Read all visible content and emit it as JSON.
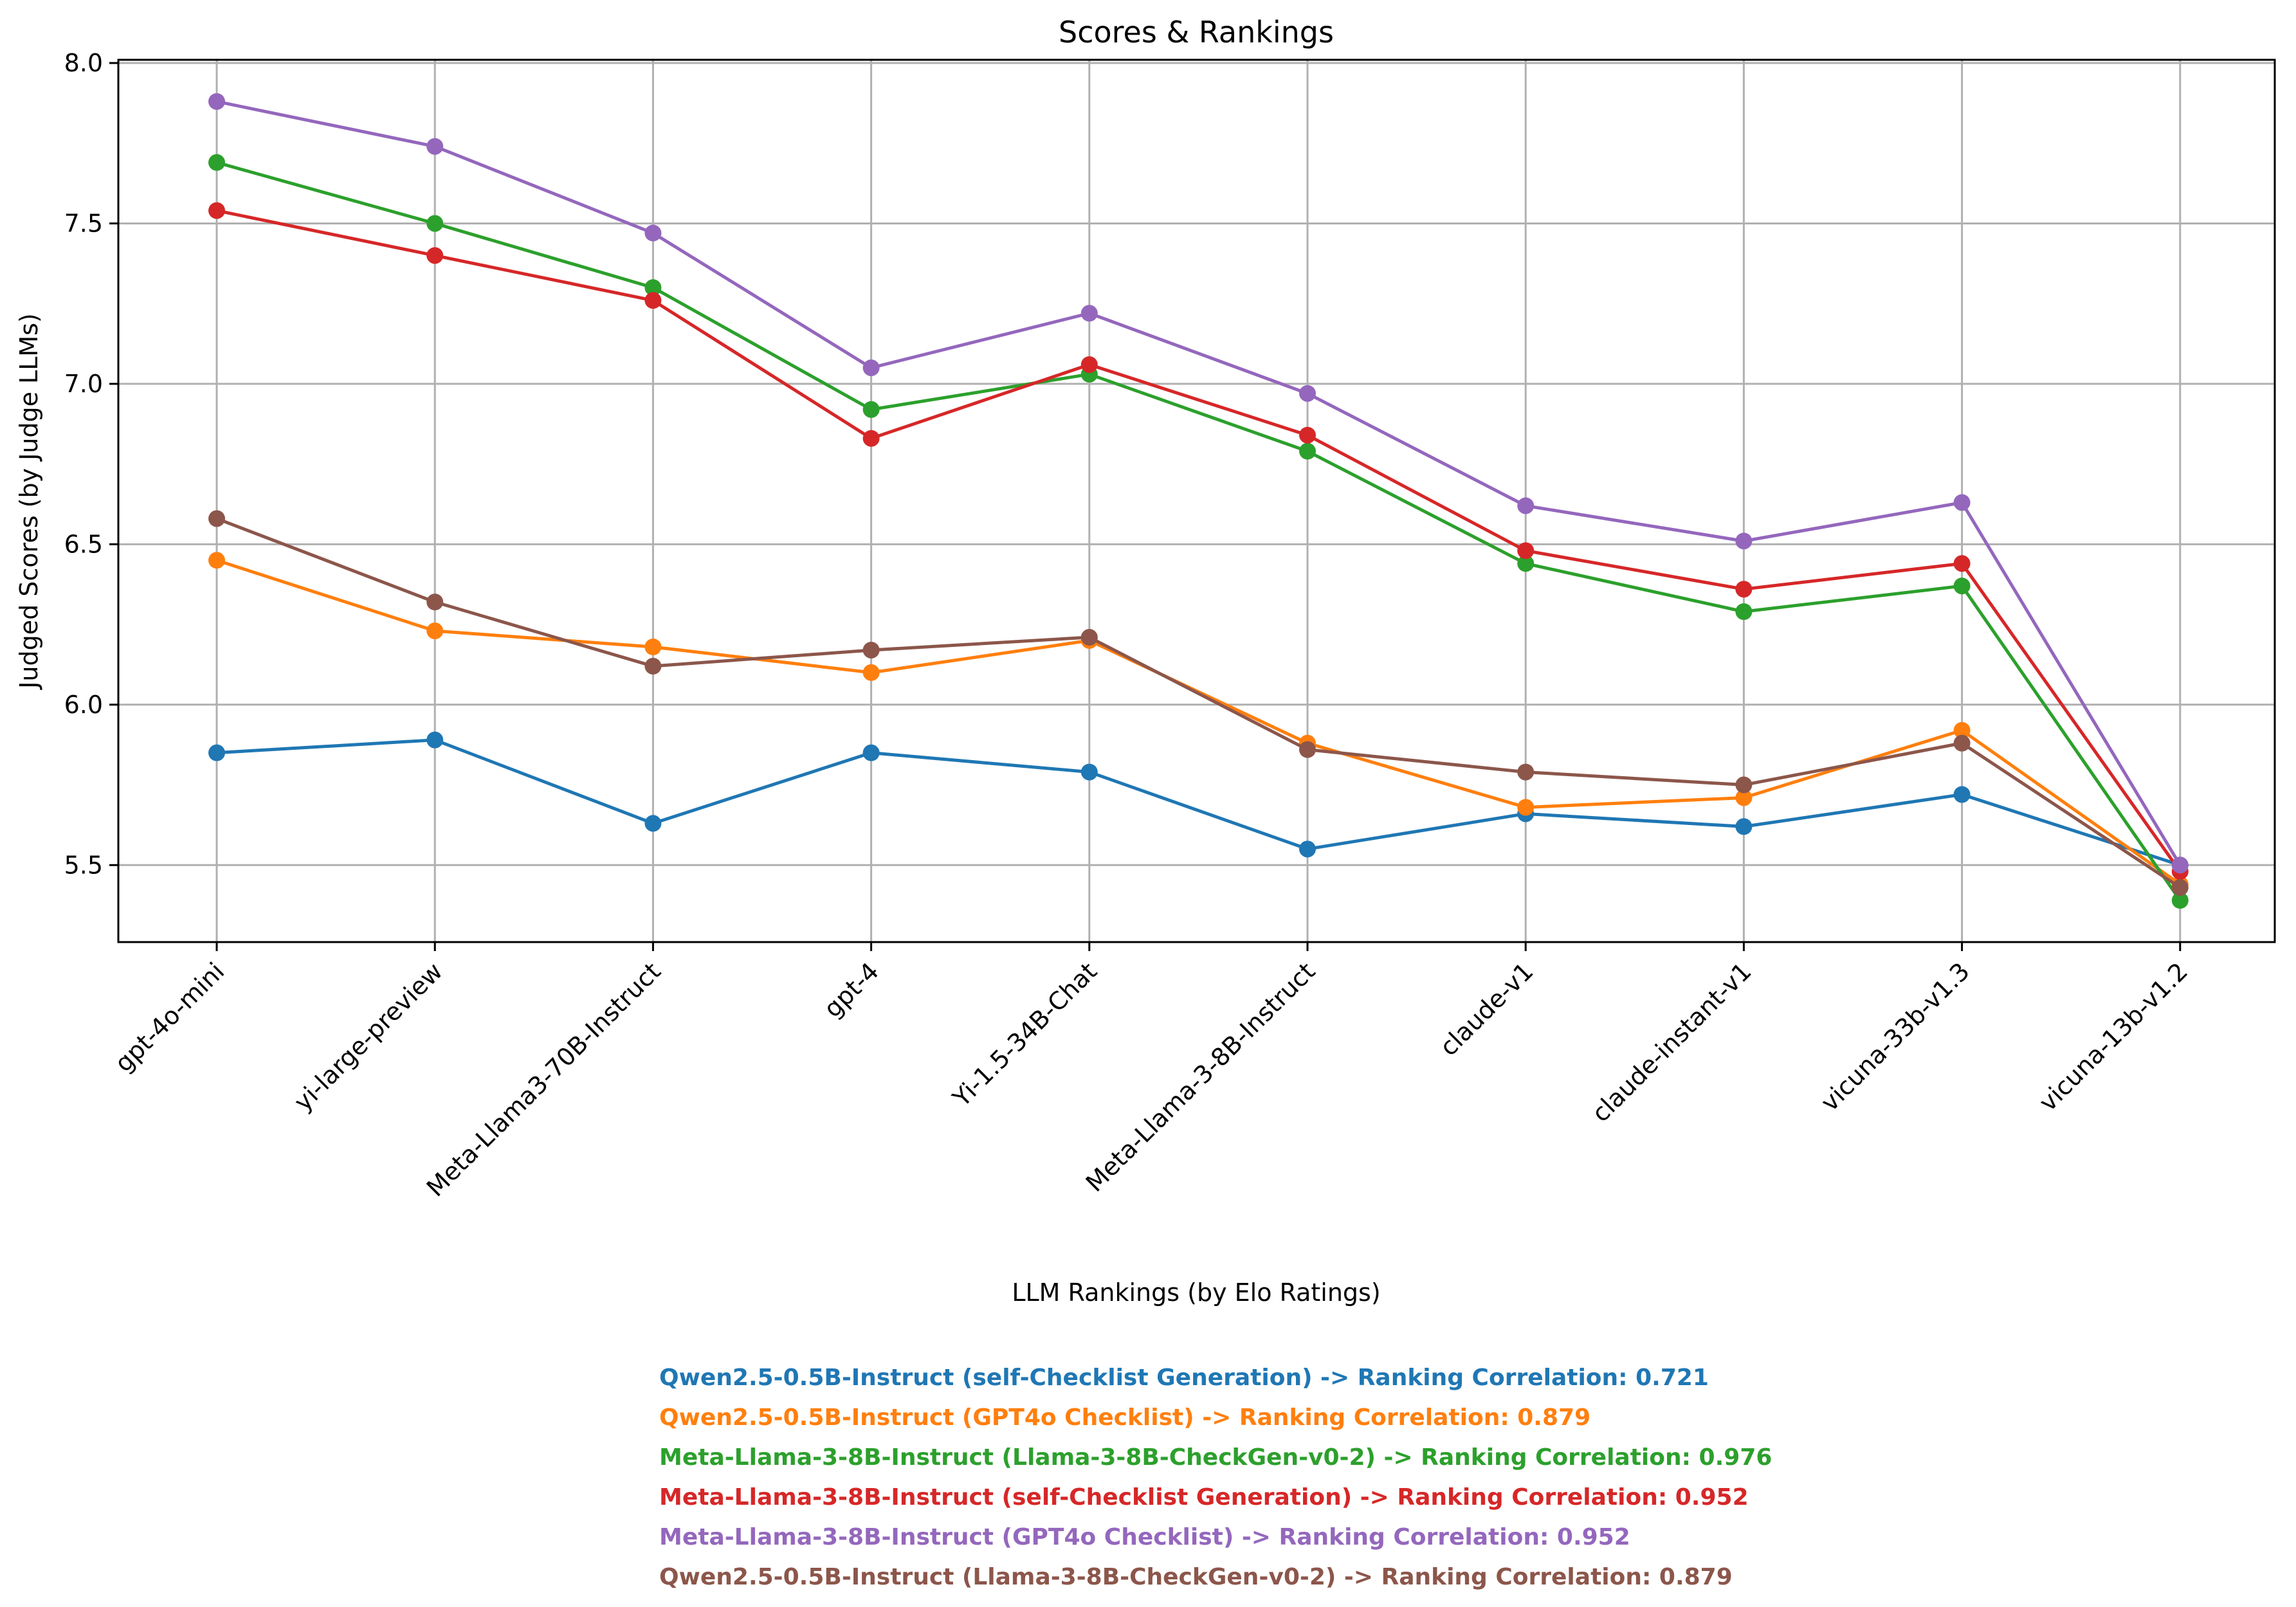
{
  "chart_data": {
    "type": "line",
    "title": "Scores & Rankings",
    "xlabel": "LLM Rankings (by Elo Ratings)",
    "ylabel": "Judged Scores (by Judge LLMs)",
    "categories": [
      "gpt-4o-mini",
      "yi-large-preview",
      "Meta-Llama3-70B-Instruct",
      "gpt-4",
      "Yi-1.5-34B-Chat",
      "Meta-Llama-3-8B-Instruct",
      "claude-v1",
      "claude-instant-v1",
      "vicuna-33b-v1.3",
      "vicuna-13b-v1.2"
    ],
    "ylim": [
      5.26,
      8.01
    ],
    "yticks": [
      "5.5",
      "6.0",
      "6.5",
      "7.0",
      "7.5",
      "8.0"
    ],
    "grid": true,
    "series": [
      {
        "color": "#1f77b4",
        "values": [
          5.85,
          5.89,
          5.63,
          5.85,
          5.79,
          5.55,
          5.66,
          5.62,
          5.72,
          5.5
        ]
      },
      {
        "color": "#ff7f0e",
        "values": [
          6.45,
          6.23,
          6.18,
          6.1,
          6.2,
          5.88,
          5.68,
          5.71,
          5.92,
          5.44
        ]
      },
      {
        "color": "#2ca02c",
        "values": [
          7.69,
          7.5,
          7.3,
          6.92,
          7.03,
          6.79,
          6.44,
          6.29,
          6.37,
          5.39
        ]
      },
      {
        "color": "#d62728",
        "values": [
          7.54,
          7.4,
          7.26,
          6.83,
          7.06,
          6.84,
          6.48,
          6.36,
          6.44,
          5.48
        ]
      },
      {
        "color": "#9467bd",
        "values": [
          7.88,
          7.74,
          7.47,
          7.05,
          7.22,
          6.97,
          6.62,
          6.51,
          6.63,
          5.5
        ]
      },
      {
        "color": "#8c564b",
        "values": [
          6.58,
          6.32,
          6.12,
          6.17,
          6.21,
          5.86,
          5.79,
          5.75,
          5.88,
          5.43
        ]
      }
    ],
    "annotations": [
      {
        "text": "Qwen2.5-0.5B-Instruct (self-Checklist Generation) -> Ranking Correlation: 0.721",
        "color": "#1f77b4"
      },
      {
        "text": "Qwen2.5-0.5B-Instruct (GPT4o Checklist) -> Ranking Correlation: 0.879",
        "color": "#ff7f0e"
      },
      {
        "text": "Meta-Llama-3-8B-Instruct (Llama-3-8B-CheckGen-v0-2) -> Ranking Correlation: 0.976",
        "color": "#2ca02c"
      },
      {
        "text": "Meta-Llama-3-8B-Instruct (self-Checklist Generation) -> Ranking Correlation: 0.952",
        "color": "#d62728"
      },
      {
        "text": "Meta-Llama-3-8B-Instruct (GPT4o Checklist) -> Ranking Correlation: 0.952",
        "color": "#9467bd"
      },
      {
        "text": "Qwen2.5-0.5B-Instruct (Llama-3-8B-CheckGen-v0-2) -> Ranking Correlation: 0.879",
        "color": "#8c564b"
      }
    ]
  }
}
